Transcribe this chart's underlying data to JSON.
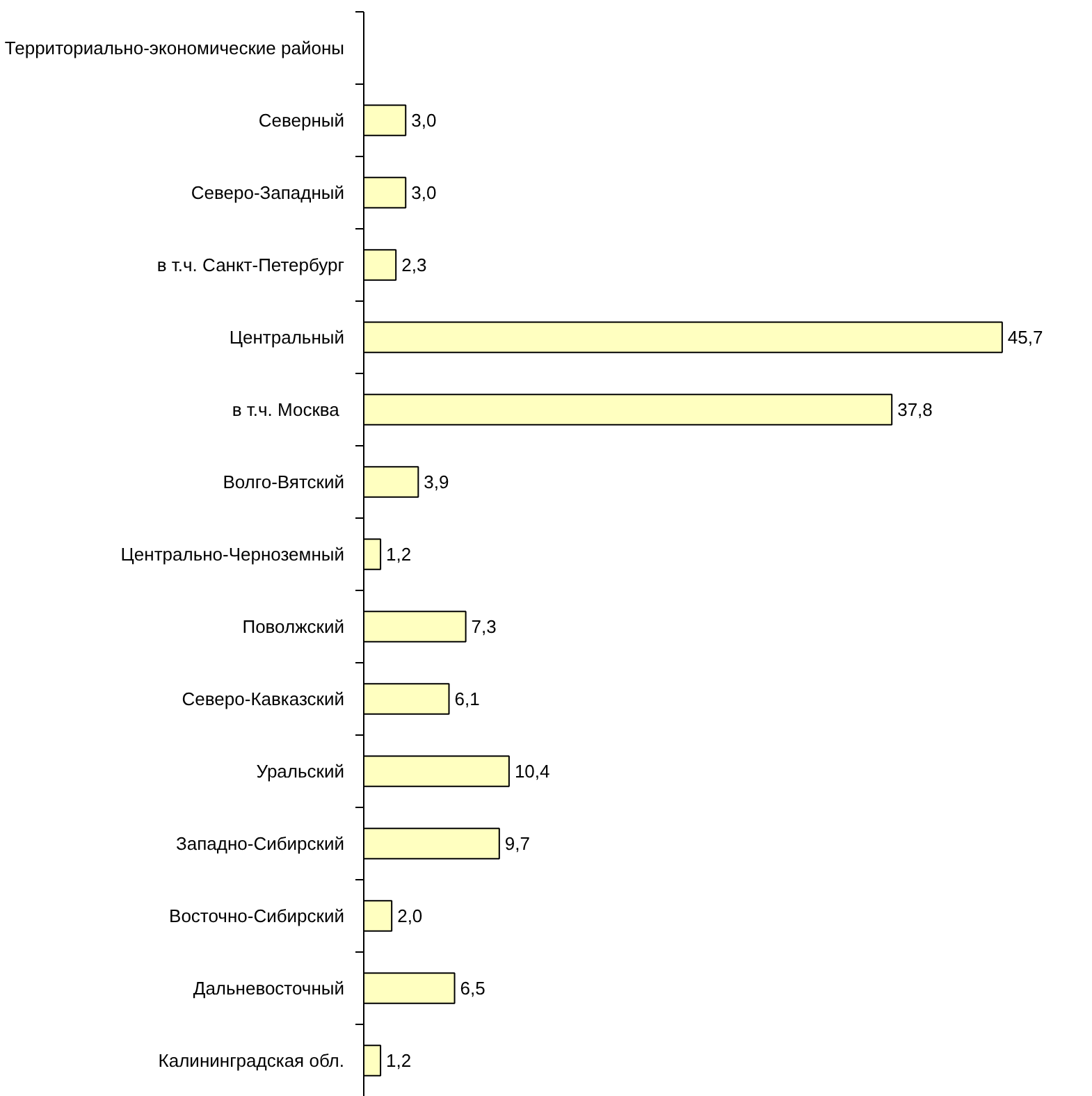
{
  "chart_data": {
    "type": "bar",
    "orientation": "horizontal",
    "categories": [
      "Территориально-экономические районы",
      "Северный",
      "Северо-Западный",
      "в т.ч. Санкт-Петербург",
      "Центральный",
      "в т.ч. Москва ",
      "Волго-Вятский",
      "Центрально-Черноземный",
      "Поволжский",
      "Северо-Кавказский",
      "Уральский",
      "Западно-Сибирский",
      "Восточно-Сибирский",
      "Дальневосточный",
      "Калининградская обл."
    ],
    "values": [
      null,
      3.0,
      3.0,
      2.3,
      45.7,
      37.8,
      3.9,
      1.2,
      7.3,
      6.1,
      10.4,
      9.7,
      2.0,
      6.5,
      1.2
    ],
    "value_labels": [
      null,
      "3,0",
      "3,0",
      "2,3",
      "45,7",
      "37,8",
      "3,9",
      "1,2",
      "7,3",
      "6,1",
      "10,4",
      "9,7",
      "2,0",
      "6,5",
      "1,2"
    ],
    "color": "#ffffc0",
    "grid": false
  }
}
